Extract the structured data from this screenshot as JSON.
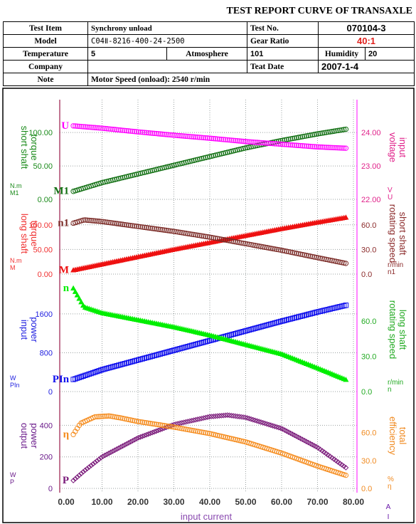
{
  "report": {
    "title": "TEST REPORT CURVE OF TRANSAXLE",
    "test_item_label": "Test Item",
    "test_item": "Synchrony unload",
    "test_no_label": "Test No.",
    "test_no": "070104-3",
    "model_label": "Model",
    "model": "C04Ⅱ-8216-400-24-2500",
    "gear_ratio_label": "Gear Ratio",
    "gear_ratio": "40:1",
    "temperature_label": "Temperature",
    "temperature": "5",
    "atmosphere_label": "Atmosphere",
    "atmosphere": "101",
    "humidity_label": "Humidity",
    "humidity": "20",
    "company_label": "Company",
    "company": "",
    "test_date_label": "Teat Date",
    "test_date": "2007-1-4",
    "note_label": "Note",
    "note": "Motor Speed (onload): 2540 r/min"
  },
  "chart_data": {
    "type": "line",
    "xlabel": "input current",
    "x_unit_symbol": "A",
    "x_var_symbol": "I",
    "xlim": [
      0,
      80
    ],
    "x_ticks": [
      "0.00",
      "10.00",
      "20.00",
      "30.00",
      "40.00",
      "50.00",
      "60.00",
      "70.00",
      "80.00"
    ],
    "panels": [
      {
        "left_axis": {
          "label": "short shaft torque",
          "unit": "N.m",
          "symbol": "M1",
          "ticks": [
            "0.00",
            "50.00",
            "100.00"
          ],
          "ylim": [
            0,
            130
          ],
          "color": "#1a8a1a"
        },
        "right_axis": {
          "label": "input voltage",
          "unit": "V",
          "symbol": "U",
          "ticks": [
            "22.00",
            "23.00",
            "24.00"
          ],
          "ylim": [
            22,
            24.6
          ],
          "color": "#e0218a"
        },
        "series": [
          {
            "name": "M1",
            "axis": "left",
            "color": "#0f6e10",
            "marker": "circle",
            "x": [
              2,
              10,
              20,
              30,
              40,
              50,
              60,
              70,
              78
            ],
            "y": [
              12,
              25,
              38,
              51,
              64,
              77,
              88,
              98,
              105
            ]
          },
          {
            "name": "U",
            "axis": "right",
            "color": "#ff00ff",
            "marker": "circle",
            "x": [
              2,
              10,
              20,
              30,
              40,
              50,
              60,
              70,
              78
            ],
            "y": [
              24.2,
              24.13,
              24.02,
              23.92,
              23.83,
              23.73,
              23.65,
              23.57,
              23.53
            ]
          }
        ]
      },
      {
        "left_axis": {
          "label": "long shaft torque",
          "unit": "N.m",
          "symbol": "M",
          "ticks": [
            "0.00",
            "50.00",
            "100.00"
          ],
          "ylim": [
            0,
            130
          ],
          "color": "#f03030"
        },
        "right_axis": {
          "label": "short shaft rotating speed",
          "unit": "r/min",
          "symbol": "n1",
          "ticks": [
            "0.0",
            "30.0",
            "60.0"
          ],
          "ylim": [
            0,
            78
          ],
          "color": "#8b2a2a"
        },
        "series": [
          {
            "name": "M",
            "axis": "left",
            "color": "#ee1111",
            "marker": "triangle",
            "x": [
              2,
              10,
              20,
              30,
              40,
              50,
              60,
              70,
              78
            ],
            "y": [
              8,
              20,
              35,
              50,
              64,
              78,
              92,
              105,
              115
            ]
          },
          {
            "name": "n1",
            "axis": "right",
            "color": "#7a2a26",
            "marker": "circle",
            "x": [
              2,
              5,
              10,
              20,
              30,
              40,
              50,
              60,
              70,
              78
            ],
            "y": [
              62,
              66,
              64,
              58,
              52,
              45,
              37,
              29,
              20,
              13
            ]
          }
        ]
      },
      {
        "left_axis": {
          "label": "input power",
          "unit": "W",
          "symbol": "PIn",
          "ticks": [
            "0",
            "800",
            "1600"
          ],
          "ylim": [
            0,
            2200
          ],
          "color": "#2020e0"
        },
        "right_axis": {
          "label": "long shaft rotating speed",
          "unit": "r/min",
          "symbol": "n",
          "ticks": [
            "0.0",
            "30.0",
            "60.0"
          ],
          "ylim": [
            0,
            91
          ],
          "color": "#22aa22"
        },
        "series": [
          {
            "name": "PIn",
            "axis": "left",
            "color": "#1010ee",
            "marker": "square",
            "x": [
              2,
              10,
              20,
              30,
              40,
              50,
              60,
              70,
              78
            ],
            "y": [
              250,
              450,
              650,
              850,
              1050,
              1250,
              1450,
              1640,
              1780
            ]
          },
          {
            "name": "n",
            "axis": "right",
            "color": "#00ee00",
            "marker": "triangle",
            "x": [
              2,
              5,
              10,
              20,
              30,
              40,
              50,
              60,
              70,
              78
            ],
            "y": [
              88,
              72,
              67,
              61,
              55,
              48,
              40,
              32,
              20,
              10
            ]
          }
        ]
      },
      {
        "left_axis": {
          "label": "output power",
          "unit": "W",
          "symbol": "P",
          "ticks": [
            "0",
            "200",
            "400"
          ],
          "ylim": [
            0,
            560
          ],
          "color": "#6a1a8a"
        },
        "right_axis": {
          "label": "total efficiency",
          "unit": "%",
          "symbol": "η",
          "ticks": [
            "0.0",
            "30.0",
            "60.0"
          ],
          "ylim": [
            0,
            95
          ],
          "color": "#f08a20"
        },
        "series": [
          {
            "name": "P",
            "axis": "left",
            "color": "#7a1a7a",
            "marker": "diamond",
            "x": [
              2,
              5,
              10,
              20,
              30,
              40,
              45,
              50,
              60,
              70,
              78
            ],
            "y": [
              50,
              110,
              200,
              320,
              405,
              455,
              465,
              450,
              380,
              260,
              130
            ]
          },
          {
            "name": "η",
            "axis": "right",
            "color": "#f58a1a",
            "marker": "circle",
            "x": [
              2,
              4,
              8,
              12,
              15,
              20,
              30,
              40,
              50,
              60,
              70,
              78
            ],
            "y": [
              58,
              70,
              77,
              78,
              76,
              72,
              66,
              59,
              50,
              38,
              24,
              14
            ]
          }
        ]
      }
    ]
  }
}
